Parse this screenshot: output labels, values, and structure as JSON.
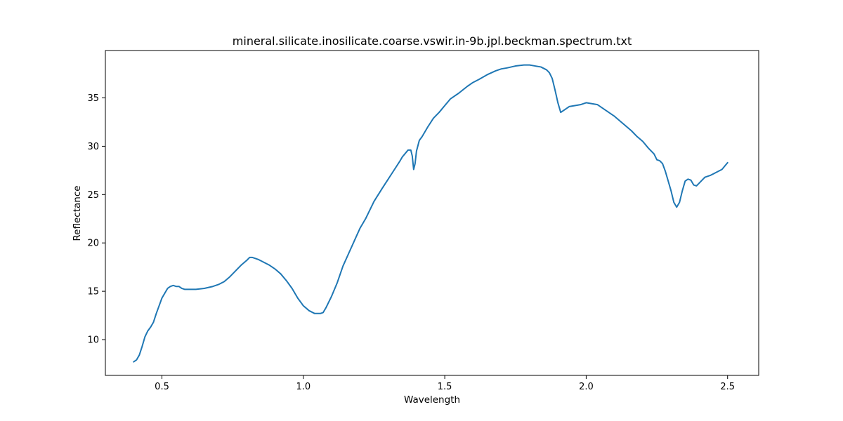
{
  "chart_data": {
    "type": "line",
    "title": "mineral.silicate.inosilicate.coarse.vswir.in-9b.jpl.beckman.spectrum.txt",
    "xlabel": "Wavelength",
    "ylabel": "Reflectance",
    "xlim": [
      0.3,
      2.61
    ],
    "ylim": [
      6.3,
      39.9
    ],
    "xticks": [
      {
        "value": 0.5,
        "label": "0.5"
      },
      {
        "value": 1.0,
        "label": "1.0"
      },
      {
        "value": 1.5,
        "label": "1.5"
      },
      {
        "value": 2.0,
        "label": "2.0"
      },
      {
        "value": 2.5,
        "label": "2.5"
      }
    ],
    "yticks": [
      {
        "value": 10,
        "label": "10"
      },
      {
        "value": 15,
        "label": "15"
      },
      {
        "value": 20,
        "label": "20"
      },
      {
        "value": 25,
        "label": "25"
      },
      {
        "value": 30,
        "label": "30"
      },
      {
        "value": 35,
        "label": "35"
      }
    ],
    "grid": false,
    "legend": "none",
    "line_color": "#1f77b4",
    "series": [
      {
        "x": [
          0.4,
          0.41,
          0.42,
          0.43,
          0.44,
          0.45,
          0.46,
          0.47,
          0.48,
          0.49,
          0.5,
          0.51,
          0.52,
          0.53,
          0.54,
          0.55,
          0.56,
          0.57,
          0.58,
          0.6,
          0.62,
          0.65,
          0.68,
          0.7,
          0.72,
          0.74,
          0.76,
          0.78,
          0.8,
          0.81,
          0.82,
          0.84,
          0.86,
          0.88,
          0.9,
          0.92,
          0.94,
          0.96,
          0.98,
          1.0,
          1.02,
          1.04,
          1.06,
          1.07,
          1.08,
          1.1,
          1.12,
          1.14,
          1.16,
          1.18,
          1.2,
          1.22,
          1.25,
          1.28,
          1.3,
          1.32,
          1.34,
          1.35,
          1.37,
          1.38,
          1.385,
          1.39,
          1.395,
          1.4,
          1.41,
          1.42,
          1.44,
          1.46,
          1.48,
          1.5,
          1.52,
          1.55,
          1.58,
          1.6,
          1.62,
          1.65,
          1.68,
          1.7,
          1.72,
          1.75,
          1.78,
          1.8,
          1.82,
          1.84,
          1.86,
          1.87,
          1.88,
          1.89,
          1.9,
          1.91,
          1.92,
          1.94,
          1.96,
          1.98,
          2.0,
          2.02,
          2.04,
          2.06,
          2.08,
          2.1,
          2.12,
          2.14,
          2.16,
          2.18,
          2.2,
          2.22,
          2.24,
          2.25,
          2.26,
          2.27,
          2.28,
          2.29,
          2.3,
          2.31,
          2.32,
          2.33,
          2.34,
          2.35,
          2.36,
          2.37,
          2.38,
          2.39,
          2.4,
          2.42,
          2.44,
          2.46,
          2.48,
          2.5
        ],
        "y": [
          7.7,
          7.9,
          8.4,
          9.3,
          10.3,
          10.9,
          11.3,
          11.8,
          12.7,
          13.5,
          14.3,
          14.8,
          15.3,
          15.5,
          15.6,
          15.5,
          15.5,
          15.3,
          15.2,
          15.2,
          15.2,
          15.3,
          15.5,
          15.7,
          16.0,
          16.5,
          17.1,
          17.7,
          18.2,
          18.5,
          18.5,
          18.3,
          18.0,
          17.7,
          17.3,
          16.8,
          16.1,
          15.3,
          14.3,
          13.5,
          13.0,
          12.7,
          12.7,
          12.8,
          13.3,
          14.5,
          15.9,
          17.6,
          18.9,
          20.2,
          21.5,
          22.5,
          24.3,
          25.7,
          26.6,
          27.5,
          28.4,
          28.9,
          29.6,
          29.6,
          29.0,
          27.6,
          28.2,
          29.5,
          30.6,
          31.0,
          32.0,
          32.9,
          33.5,
          34.2,
          34.9,
          35.5,
          36.2,
          36.6,
          36.9,
          37.4,
          37.8,
          38.0,
          38.1,
          38.3,
          38.4,
          38.4,
          38.3,
          38.2,
          37.9,
          37.6,
          37.0,
          35.8,
          34.5,
          33.5,
          33.7,
          34.1,
          34.2,
          34.3,
          34.5,
          34.4,
          34.3,
          33.9,
          33.5,
          33.1,
          32.6,
          32.1,
          31.6,
          31.0,
          30.5,
          29.8,
          29.2,
          28.6,
          28.5,
          28.2,
          27.4,
          26.4,
          25.4,
          24.2,
          23.7,
          24.2,
          25.4,
          26.4,
          26.6,
          26.5,
          26.0,
          25.9,
          26.2,
          26.8,
          27.0,
          27.3,
          27.6,
          28.3
        ]
      }
    ]
  }
}
